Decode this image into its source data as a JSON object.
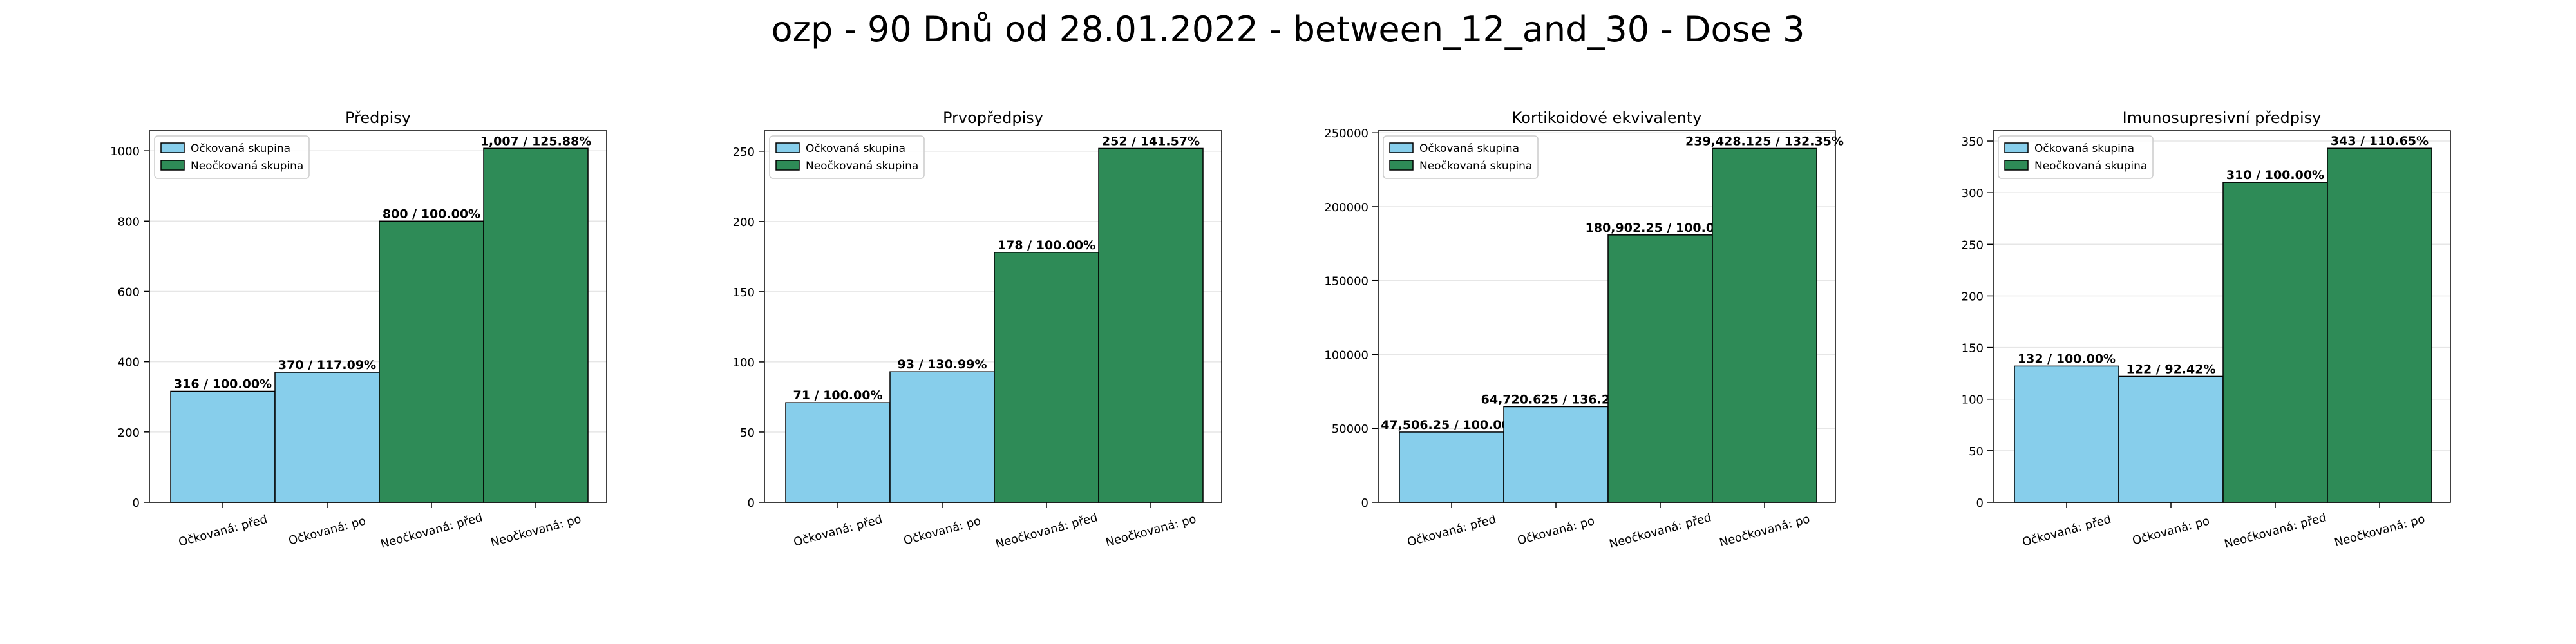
{
  "suptitle": "ozp - 90 Dnů od 28.01.2022 - between_12_and_30 - Dose 3",
  "colors": {
    "vaccinated": "#87CEEB",
    "unvaccinated": "#2E8B57",
    "edge": "#000000",
    "grid": "#e6e6e6"
  },
  "chart_data": [
    {
      "type": "bar",
      "title": "Předpisy",
      "categories": [
        "Očkovaná: před",
        "Očkovaná: po",
        "Neočkovaná: před",
        "Neočkovaná: po"
      ],
      "values": [
        316,
        370,
        800,
        1007
      ],
      "bar_labels": [
        "316 / 100.00%",
        "370 / 117.09%",
        "800 / 100.00%",
        "1,007 / 125.88%"
      ],
      "bar_groups": [
        "vaccinated",
        "vaccinated",
        "unvaccinated",
        "unvaccinated"
      ],
      "yticks": [
        0,
        200,
        400,
        600,
        800,
        1000
      ],
      "ytick_labels": [
        "0",
        "200",
        "400",
        "600",
        "800",
        "1000"
      ],
      "ylim": [
        0,
        1057
      ],
      "legend": [
        "Očkovaná skupina",
        "Neočkovaná skupina"
      ],
      "legend_position": "upper-left",
      "grid": true
    },
    {
      "type": "bar",
      "title": "Prvopředpisy",
      "categories": [
        "Očkovaná: před",
        "Očkovaná: po",
        "Neočkovaná: před",
        "Neočkovaná: po"
      ],
      "values": [
        71,
        93,
        178,
        252
      ],
      "bar_labels": [
        "71 / 100.00%",
        "93 / 130.99%",
        "178 / 100.00%",
        "252 / 141.57%"
      ],
      "bar_groups": [
        "vaccinated",
        "vaccinated",
        "unvaccinated",
        "unvaccinated"
      ],
      "yticks": [
        0,
        50,
        100,
        150,
        200,
        250
      ],
      "ytick_labels": [
        "0",
        "50",
        "100",
        "150",
        "200",
        "250"
      ],
      "ylim": [
        0,
        264.6
      ],
      "legend": [
        "Očkovaná skupina",
        "Neočkovaná skupina"
      ],
      "legend_position": "upper-left",
      "grid": true
    },
    {
      "type": "bar",
      "title": "Kortikoidové ekvivalenty",
      "categories": [
        "Očkovaná: před",
        "Očkovaná: po",
        "Neočkovaná: před",
        "Neočkovaná: po"
      ],
      "values": [
        47506.25,
        64720.625,
        180902.25,
        239428.125
      ],
      "bar_labels": [
        "47,506.25 / 100.00%",
        "64,720.625 / 136.24%",
        "180,902.25 / 100.00%",
        "239,428.125 / 132.35%"
      ],
      "bar_groups": [
        "vaccinated",
        "vaccinated",
        "unvaccinated",
        "unvaccinated"
      ],
      "yticks": [
        0,
        50000,
        100000,
        150000,
        200000,
        250000
      ],
      "ytick_labels": [
        "0",
        "50000",
        "100000",
        "150000",
        "200000",
        "250000"
      ],
      "ylim": [
        0,
        251400
      ],
      "legend": [
        "Očkovaná skupina",
        "Neočkovaná skupina"
      ],
      "legend_position": "upper-left",
      "grid": true
    },
    {
      "type": "bar",
      "title": "Imunosupresivní předpisy",
      "categories": [
        "Očkovaná: před",
        "Očkovaná: po",
        "Neočkovaná: před",
        "Neočkovaná: po"
      ],
      "values": [
        132,
        122,
        310,
        343
      ],
      "bar_labels": [
        "132 / 100.00%",
        "122 / 92.42%",
        "310 / 100.00%",
        "343 / 110.65%"
      ],
      "bar_groups": [
        "vaccinated",
        "vaccinated",
        "unvaccinated",
        "unvaccinated"
      ],
      "yticks": [
        0,
        50,
        100,
        150,
        200,
        250,
        300,
        350
      ],
      "ytick_labels": [
        "0",
        "50",
        "100",
        "150",
        "200",
        "250",
        "300",
        "350"
      ],
      "ylim": [
        0,
        360
      ],
      "legend": [
        "Očkovaná skupina",
        "Neočkovaná skupina"
      ],
      "legend_position": "upper-left",
      "grid": true
    }
  ]
}
